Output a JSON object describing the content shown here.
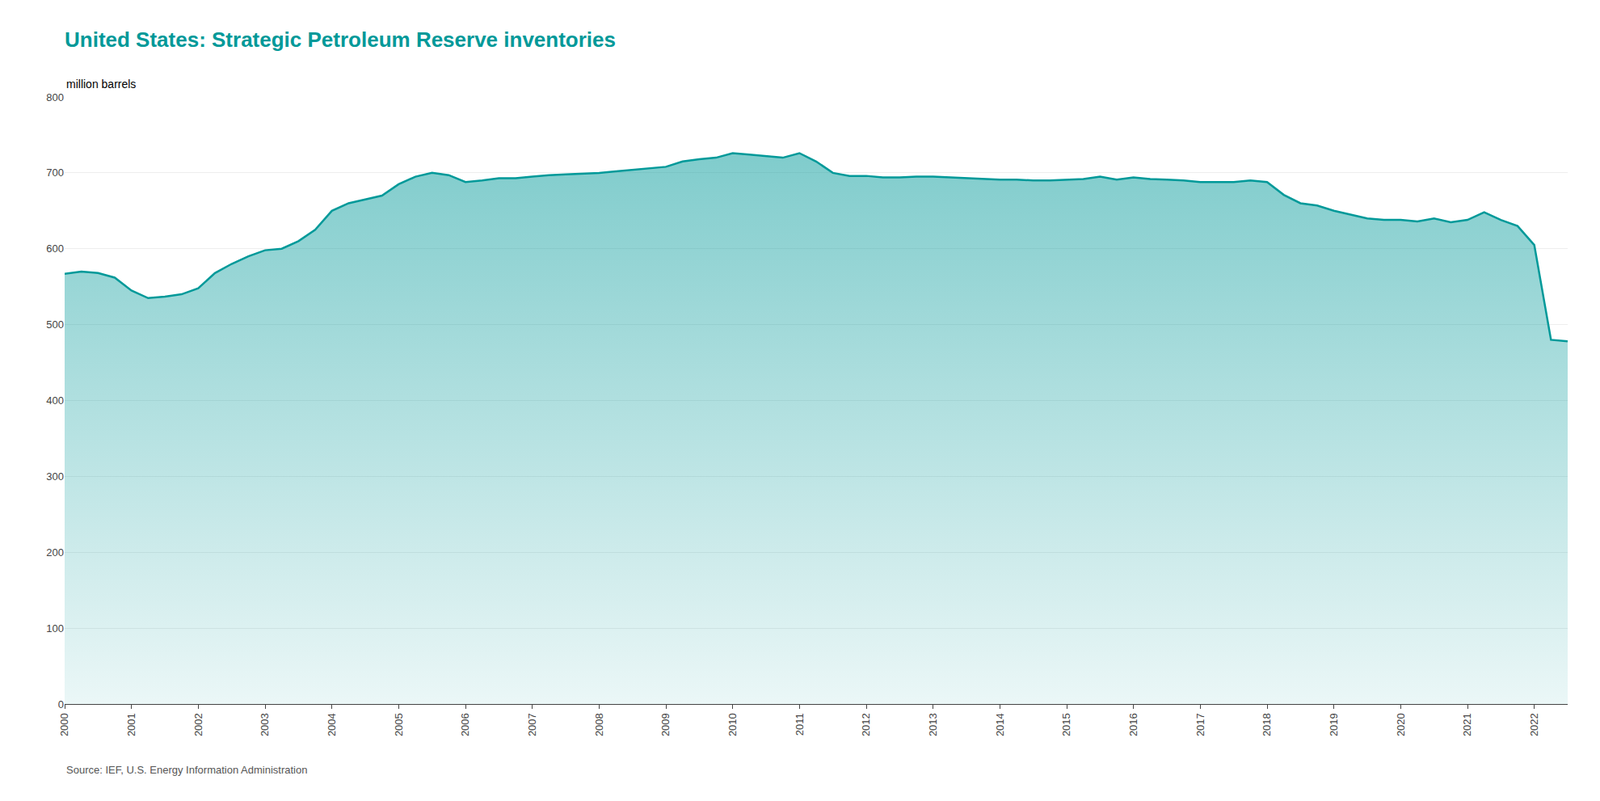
{
  "chart_data": {
    "type": "area",
    "title": "United States: Strategic Petroleum Reserve inventories",
    "ylabel": "million barrels",
    "annotations": [
      "Source: IEF, U.S. Energy Information Administration"
    ],
    "color": "#009999",
    "x": [
      2000.0,
      2000.25,
      2000.5,
      2000.75,
      2001.0,
      2001.25,
      2001.5,
      2001.75,
      2002.0,
      2002.25,
      2002.5,
      2002.75,
      2003.0,
      2003.25,
      2003.5,
      2003.75,
      2004.0,
      2004.25,
      2004.5,
      2004.75,
      2005.0,
      2005.25,
      2005.5,
      2005.75,
      2006.0,
      2006.25,
      2006.5,
      2006.75,
      2007.0,
      2007.25,
      2007.5,
      2007.75,
      2008.0,
      2008.25,
      2008.5,
      2008.75,
      2009.0,
      2009.25,
      2009.5,
      2009.75,
      2010.0,
      2010.25,
      2010.5,
      2010.75,
      2011.0,
      2011.25,
      2011.5,
      2011.75,
      2012.0,
      2012.25,
      2012.5,
      2012.75,
      2013.0,
      2013.25,
      2013.5,
      2013.75,
      2014.0,
      2014.25,
      2014.5,
      2014.75,
      2015.0,
      2015.25,
      2015.5,
      2015.75,
      2016.0,
      2016.25,
      2016.5,
      2016.75,
      2017.0,
      2017.25,
      2017.5,
      2017.75,
      2018.0,
      2018.25,
      2018.5,
      2018.75,
      2019.0,
      2019.25,
      2019.5,
      2019.75,
      2020.0,
      2020.25,
      2020.5,
      2020.75,
      2021.0,
      2021.25,
      2021.5,
      2021.75,
      2022.0,
      2022.25,
      2022.5
    ],
    "values": [
      567,
      570,
      568,
      562,
      545,
      535,
      537,
      540,
      548,
      568,
      580,
      590,
      598,
      600,
      610,
      625,
      650,
      660,
      665,
      670,
      685,
      695,
      700,
      697,
      688,
      690,
      693,
      693,
      695,
      697,
      698,
      699,
      700,
      702,
      704,
      706,
      708,
      715,
      718,
      720,
      726,
      724,
      722,
      720,
      726,
      715,
      700,
      696,
      696,
      694,
      694,
      695,
      695,
      694,
      693,
      692,
      691,
      691,
      690,
      690,
      691,
      692,
      695,
      691,
      694,
      692,
      691,
      690,
      688,
      688,
      688,
      690,
      688,
      671,
      660,
      657,
      650,
      645,
      640,
      638,
      638,
      636,
      640,
      635,
      638,
      648,
      638,
      630,
      605,
      480,
      478
    ],
    "xlim": [
      2000.0,
      2022.5
    ],
    "xticks": [
      2000,
      2001,
      2002,
      2003,
      2004,
      2005,
      2006,
      2007,
      2008,
      2009,
      2010,
      2011,
      2012,
      2013,
      2014,
      2015,
      2016,
      2017,
      2018,
      2019,
      2020,
      2021,
      2022
    ],
    "ylim": [
      0,
      800
    ],
    "yticks": [
      0,
      100,
      200,
      300,
      400,
      500,
      600,
      700,
      800
    ],
    "grid": true
  }
}
